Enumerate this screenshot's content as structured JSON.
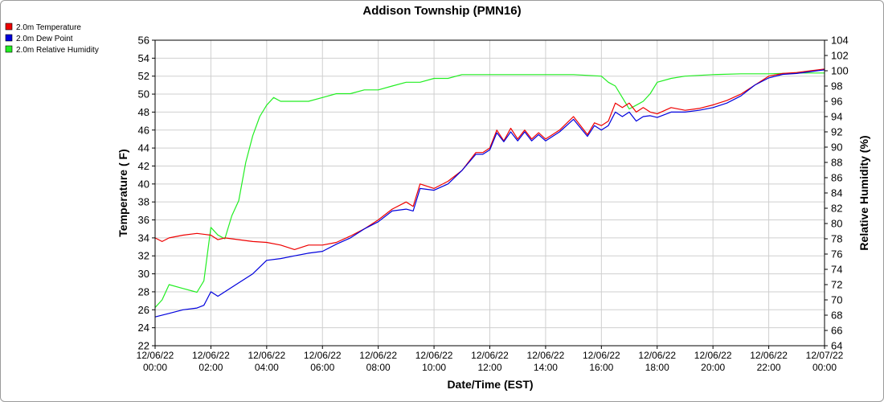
{
  "chart_data": {
    "type": "line",
    "title": "Addison Township (PMN16)",
    "xlabel": "Date/Time (EST)",
    "ylabel": "Temperature ( F)",
    "y2label": "Relative Humidity (%)",
    "ylim": [
      22,
      56
    ],
    "y2lim": [
      64,
      104
    ],
    "grid": true,
    "legend_position": "top-left",
    "x_ticks": [
      {
        "date": "12/06/22",
        "time": "00:00"
      },
      {
        "date": "12/06/22",
        "time": "02:00"
      },
      {
        "date": "12/06/22",
        "time": "04:00"
      },
      {
        "date": "12/06/22",
        "time": "06:00"
      },
      {
        "date": "12/06/22",
        "time": "08:00"
      },
      {
        "date": "12/06/22",
        "time": "10:00"
      },
      {
        "date": "12/06/22",
        "time": "12:00"
      },
      {
        "date": "12/06/22",
        "time": "14:00"
      },
      {
        "date": "12/06/22",
        "time": "16:00"
      },
      {
        "date": "12/06/22",
        "time": "18:00"
      },
      {
        "date": "12/06/22",
        "time": "20:00"
      },
      {
        "date": "12/06/22",
        "time": "22:00"
      },
      {
        "date": "12/07/22",
        "time": "00:00"
      }
    ],
    "y_ticks": [
      22,
      24,
      26,
      28,
      30,
      32,
      34,
      36,
      38,
      40,
      42,
      44,
      46,
      48,
      50,
      52,
      54,
      56
    ],
    "y2_ticks": [
      64,
      66,
      68,
      70,
      72,
      74,
      76,
      78,
      80,
      82,
      84,
      86,
      88,
      90,
      92,
      94,
      96,
      98,
      100,
      102,
      104
    ],
    "x_range": [
      "12/06/22 00:00",
      "12/07/22 00:00"
    ],
    "series": [
      {
        "name": "2.0m Temperature",
        "color": "#ee0000",
        "axis": "left",
        "x": [
          "12/06/22 00:00",
          "12/06/22 00:15",
          "12/06/22 00:30",
          "12/06/22 01:00",
          "12/06/22 01:30",
          "12/06/22 02:00",
          "12/06/22 02:15",
          "12/06/22 02:30",
          "12/06/22 03:00",
          "12/06/22 03:30",
          "12/06/22 04:00",
          "12/06/22 04:30",
          "12/06/22 05:00",
          "12/06/22 05:30",
          "12/06/22 06:00",
          "12/06/22 06:30",
          "12/06/22 07:00",
          "12/06/22 07:30",
          "12/06/22 08:00",
          "12/06/22 08:30",
          "12/06/22 09:00",
          "12/06/22 09:15",
          "12/06/22 09:30",
          "12/06/22 10:00",
          "12/06/22 10:30",
          "12/06/22 11:00",
          "12/06/22 11:30",
          "12/06/22 11:45",
          "12/06/22 12:00",
          "12/06/22 12:15",
          "12/06/22 12:30",
          "12/06/22 12:45",
          "12/06/22 13:00",
          "12/06/22 13:15",
          "12/06/22 13:30",
          "12/06/22 13:45",
          "12/06/22 14:00",
          "12/06/22 14:15",
          "12/06/22 14:30",
          "12/06/22 15:00",
          "12/06/22 15:30",
          "12/06/22 15:45",
          "12/06/22 16:00",
          "12/06/22 16:15",
          "12/06/22 16:30",
          "12/06/22 16:45",
          "12/06/22 17:00",
          "12/06/22 17:15",
          "12/06/22 17:30",
          "12/06/22 17:45",
          "12/06/22 18:00",
          "12/06/22 18:30",
          "12/06/22 19:00",
          "12/06/22 19:30",
          "12/06/22 20:00",
          "12/06/22 20:30",
          "12/06/22 21:00",
          "12/06/22 21:30",
          "12/06/22 22:00",
          "12/06/22 22:30",
          "12/06/22 23:00",
          "12/06/22 23:30",
          "12/07/22 00:00"
        ],
        "y": [
          34.0,
          33.6,
          34.0,
          34.3,
          34.5,
          34.3,
          33.8,
          34.0,
          33.8,
          33.6,
          33.5,
          33.2,
          32.7,
          33.2,
          33.2,
          33.5,
          34.2,
          35.0,
          36.0,
          37.2,
          38.0,
          37.5,
          40.0,
          39.5,
          40.3,
          41.5,
          43.5,
          43.5,
          44.0,
          46.0,
          44.8,
          46.2,
          45.0,
          46.0,
          45.0,
          45.7,
          45.0,
          45.5,
          46.0,
          47.5,
          45.5,
          46.8,
          46.5,
          47.0,
          49.0,
          48.5,
          49.0,
          48.0,
          48.5,
          48.0,
          47.8,
          48.5,
          48.2,
          48.4,
          48.8,
          49.3,
          50.0,
          51.0,
          52.0,
          52.3,
          52.4,
          52.6,
          52.8
        ]
      },
      {
        "name": "2.0m Dew Point",
        "color": "#0000dd",
        "axis": "left",
        "x": [
          "12/06/22 00:00",
          "12/06/22 00:30",
          "12/06/22 01:00",
          "12/06/22 01:30",
          "12/06/22 01:45",
          "12/06/22 02:00",
          "12/06/22 02:15",
          "12/06/22 02:30",
          "12/06/22 03:00",
          "12/06/22 03:30",
          "12/06/22 04:00",
          "12/06/22 04:30",
          "12/06/22 05:00",
          "12/06/22 05:30",
          "12/06/22 06:00",
          "12/06/22 06:30",
          "12/06/22 07:00",
          "12/06/22 07:30",
          "12/06/22 08:00",
          "12/06/22 08:30",
          "12/06/22 09:00",
          "12/06/22 09:15",
          "12/06/22 09:30",
          "12/06/22 10:00",
          "12/06/22 10:30",
          "12/06/22 11:00",
          "12/06/22 11:30",
          "12/06/22 11:45",
          "12/06/22 12:00",
          "12/06/22 12:15",
          "12/06/22 12:30",
          "12/06/22 12:45",
          "12/06/22 13:00",
          "12/06/22 13:15",
          "12/06/22 13:30",
          "12/06/22 13:45",
          "12/06/22 14:00",
          "12/06/22 14:15",
          "12/06/22 14:30",
          "12/06/22 15:00",
          "12/06/22 15:30",
          "12/06/22 15:45",
          "12/06/22 16:00",
          "12/06/22 16:15",
          "12/06/22 16:30",
          "12/06/22 16:45",
          "12/06/22 17:00",
          "12/06/22 17:15",
          "12/06/22 17:30",
          "12/06/22 17:45",
          "12/06/22 18:00",
          "12/06/22 18:30",
          "12/06/22 19:00",
          "12/06/22 19:30",
          "12/06/22 20:00",
          "12/06/22 20:30",
          "12/06/22 21:00",
          "12/06/22 21:30",
          "12/06/22 22:00",
          "12/06/22 22:30",
          "12/06/22 23:00",
          "12/06/22 23:30",
          "12/07/22 00:00"
        ],
        "y": [
          25.2,
          25.6,
          26.0,
          26.2,
          26.5,
          28.0,
          27.5,
          28.0,
          29.0,
          30.0,
          31.5,
          31.7,
          32.0,
          32.3,
          32.5,
          33.3,
          34.0,
          35.0,
          35.8,
          37.0,
          37.2,
          37.0,
          39.5,
          39.3,
          40.0,
          41.5,
          43.3,
          43.3,
          43.8,
          45.7,
          44.7,
          45.8,
          44.8,
          45.8,
          44.8,
          45.5,
          44.8,
          45.3,
          45.8,
          47.2,
          45.3,
          46.5,
          46.0,
          46.5,
          48.0,
          47.5,
          48.0,
          47.0,
          47.5,
          47.6,
          47.4,
          48.0,
          48.0,
          48.2,
          48.5,
          49.0,
          49.8,
          51.0,
          51.8,
          52.2,
          52.3,
          52.5,
          52.7
        ]
      },
      {
        "name": "2.0m Relative Humidity",
        "color": "#22ee22",
        "axis": "right",
        "x": [
          "12/06/22 00:00",
          "12/06/22 00:15",
          "12/06/22 00:30",
          "12/06/22 01:00",
          "12/06/22 01:30",
          "12/06/22 01:45",
          "12/06/22 02:00",
          "12/06/22 02:15",
          "12/06/22 02:30",
          "12/06/22 02:45",
          "12/06/22 03:00",
          "12/06/22 03:15",
          "12/06/22 03:30",
          "12/06/22 03:45",
          "12/06/22 04:00",
          "12/06/22 04:15",
          "12/06/22 04:30",
          "12/06/22 05:00",
          "12/06/22 05:30",
          "12/06/22 06:00",
          "12/06/22 06:30",
          "12/06/22 07:00",
          "12/06/22 07:30",
          "12/06/22 08:00",
          "12/06/22 08:30",
          "12/06/22 09:00",
          "12/06/22 09:30",
          "12/06/22 10:00",
          "12/06/22 10:30",
          "12/06/22 11:00",
          "12/06/22 12:00",
          "12/06/22 13:00",
          "12/06/22 14:00",
          "12/06/22 15:00",
          "12/06/22 16:00",
          "12/06/22 16:15",
          "12/06/22 16:30",
          "12/06/22 16:45",
          "12/06/22 17:00",
          "12/06/22 17:15",
          "12/06/22 17:30",
          "12/06/22 17:45",
          "12/06/22 18:00",
          "12/06/22 18:30",
          "12/06/22 19:00",
          "12/06/22 20:00",
          "12/06/22 21:00",
          "12/06/22 22:00",
          "12/06/22 23:00",
          "12/07/22 00:00"
        ],
        "y": [
          69.0,
          70.0,
          72.0,
          71.5,
          71.0,
          72.5,
          79.5,
          78.5,
          78.0,
          81.0,
          83.0,
          88.0,
          91.5,
          94.0,
          95.5,
          96.5,
          96.0,
          96.0,
          96.0,
          96.5,
          97.0,
          97.0,
          97.5,
          97.5,
          98.0,
          98.5,
          98.5,
          99.0,
          99.0,
          99.5,
          99.5,
          99.5,
          99.5,
          99.5,
          99.3,
          98.5,
          98.0,
          96.5,
          95.0,
          95.5,
          96.0,
          97.0,
          98.5,
          99.0,
          99.3,
          99.5,
          99.6,
          99.6,
          99.7,
          99.7
        ]
      }
    ]
  }
}
